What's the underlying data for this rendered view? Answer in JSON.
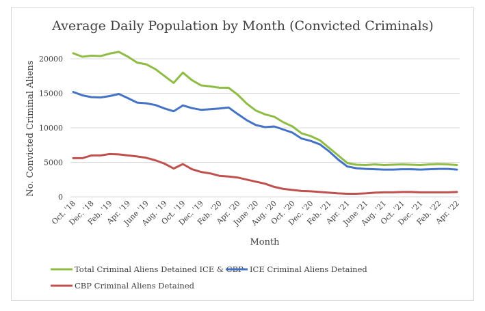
{
  "chart_data": {
    "type": "line",
    "title": "Average Daily Population by Month (Convicted Criminals)",
    "xlabel": "Month",
    "ylabel": "No. Convicted Criminal Aliens",
    "ylim": [
      0,
      22000
    ],
    "yticks": [
      "0",
      "5000",
      "10000",
      "15000",
      "20000"
    ],
    "ytick_values": [
      0,
      5000,
      10000,
      15000,
      20000
    ],
    "grid": "horizontal",
    "legend_position": "bottom",
    "x_tick_labels": [
      "Oct. '18",
      "Dec. '18",
      "Feb. '19",
      "Apr. '19",
      "June '19",
      "Aug. '19",
      "Oct. '19",
      "Dec. '19",
      "Feb. '20",
      "Apr. '20",
      "June '20",
      "Aug. '20",
      "Oct. '20",
      "Dec. '20",
      "Feb. '21",
      "Apr. '21",
      "June '21",
      "Aug. '21",
      "Oct. '21",
      "Dec. '21",
      "Feb. '22",
      "Apr. '22"
    ],
    "x": [
      "Oct. '18",
      "Nov. '18",
      "Dec. '18",
      "Jan. '19",
      "Feb. '19",
      "Mar. '19",
      "Apr. '19",
      "May '19",
      "June '19",
      "July '19",
      "Aug. '19",
      "Sep. '19",
      "Oct. '19",
      "Nov. '19",
      "Dec. '19",
      "Jan. '20",
      "Feb. '20",
      "Mar. '20",
      "Apr. '20",
      "May '20",
      "June '20",
      "July '20",
      "Aug. '20",
      "Sep. '20",
      "Oct. '20",
      "Nov. '20",
      "Dec. '20",
      "Jan. '21",
      "Feb. '21",
      "Mar. '21",
      "Apr. '21",
      "May '21",
      "June '21",
      "July '21",
      "Aug. '21",
      "Sep. '21",
      "Oct. '21",
      "Nov. '21",
      "Dec. '21",
      "Jan. '22",
      "Feb. '22",
      "Mar. '22",
      "Apr. '22"
    ],
    "series": [
      {
        "name": "Total Criminal Aliens Detained ICE & CBP",
        "color": "#8fbc45",
        "values": [
          20800,
          20300,
          20450,
          20400,
          20750,
          21000,
          20300,
          19450,
          19200,
          18500,
          17500,
          16500,
          18000,
          16900,
          16150,
          16000,
          15800,
          15800,
          14800,
          13500,
          12500,
          11950,
          11600,
          10800,
          10200,
          9200,
          8800,
          8200,
          7100,
          6000,
          4900,
          4650,
          4600,
          4700,
          4600,
          4650,
          4700,
          4650,
          4600,
          4700,
          4750,
          4700,
          4600
        ]
      },
      {
        "name": "ICE Criminal Aliens Detained",
        "color": "#4472c4",
        "values": [
          15200,
          14700,
          14450,
          14400,
          14600,
          14900,
          14300,
          13650,
          13550,
          13300,
          12800,
          12400,
          13250,
          12850,
          12600,
          12700,
          12800,
          12950,
          12000,
          11100,
          10400,
          10100,
          10200,
          9750,
          9300,
          8450,
          8100,
          7600,
          6600,
          5400,
          4400,
          4150,
          4050,
          4000,
          3950,
          3950,
          4000,
          4000,
          3950,
          4000,
          4050,
          4050,
          3950
        ]
      },
      {
        "name": "CBP Criminal Aliens Detained",
        "color": "#c0504d",
        "values": [
          5600,
          5600,
          6000,
          6000,
          6200,
          6150,
          6000,
          5850,
          5650,
          5300,
          4800,
          4100,
          4750,
          4000,
          3600,
          3400,
          3050,
          2950,
          2800,
          2500,
          2200,
          1900,
          1450,
          1150,
          1000,
          850,
          800,
          700,
          600,
          500,
          450,
          450,
          500,
          600,
          650,
          650,
          700,
          700,
          650,
          650,
          650,
          650,
          700
        ]
      }
    ]
  }
}
